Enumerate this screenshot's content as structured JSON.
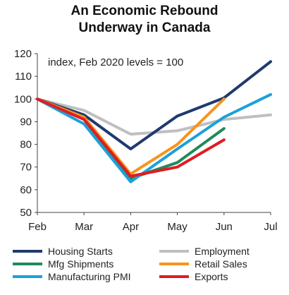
{
  "chart_data": {
    "type": "line",
    "title_line1": "An Economic Rebound",
    "title_line2": "Underway in Canada",
    "annotation": "index,  Feb 2020 levels = 100",
    "categories": [
      "Feb",
      "Mar",
      "Apr",
      "May",
      "Jun",
      "Jul"
    ],
    "ylim": [
      50,
      120
    ],
    "yticks": [
      50,
      60,
      70,
      80,
      90,
      100,
      110,
      120
    ],
    "grid": false,
    "legend_position": "bottom",
    "series": [
      {
        "name": "Housing Starts",
        "color": "#1f3a6e",
        "values": [
          100,
          93,
          78,
          92.5,
          100.5,
          116.5
        ]
      },
      {
        "name": "Employment",
        "color": "#bfbfbf",
        "values": [
          100,
          95,
          84.5,
          86,
          91,
          93
        ]
      },
      {
        "name": "Mfg Shipments",
        "color": "#1e8a5a",
        "values": [
          100,
          91,
          65,
          72,
          87,
          null
        ]
      },
      {
        "name": "Retail Sales",
        "color": "#f7941d",
        "values": [
          100,
          92,
          67,
          80,
          100,
          null
        ]
      },
      {
        "name": "Manufacturing PMI",
        "color": "#1ba1d8",
        "values": [
          100,
          89,
          63.5,
          78,
          92,
          102
        ]
      },
      {
        "name": "Exports",
        "color": "#e01b24",
        "values": [
          100,
          91,
          66,
          70,
          82,
          null
        ]
      }
    ]
  }
}
